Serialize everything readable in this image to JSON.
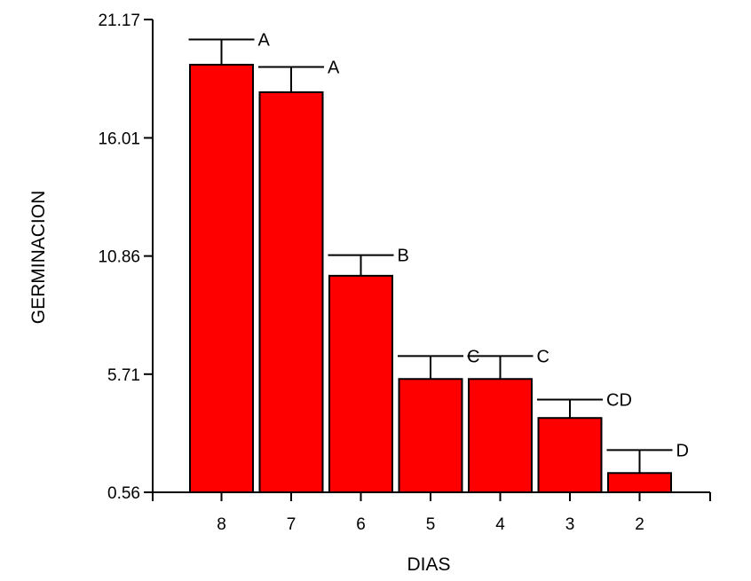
{
  "chart_data": {
    "type": "bar",
    "title": "",
    "xlabel": "DIAS",
    "ylabel": "GERMINACION",
    "categories": [
      "8",
      "7",
      "6",
      "5",
      "4",
      "3",
      "2"
    ],
    "values": [
      19.2,
      18.0,
      10.0,
      5.5,
      5.5,
      3.8,
      1.4
    ],
    "error_upper": [
      20.3,
      19.1,
      10.9,
      6.5,
      6.5,
      4.6,
      2.4
    ],
    "group_labels": [
      "A",
      "A",
      "B",
      "C",
      "C",
      "CD",
      "D"
    ],
    "ylim": [
      0.56,
      21.17
    ],
    "yticks": [
      "0.56",
      "5.71",
      "10.86",
      "16.01",
      "21.17"
    ],
    "ytick_values": [
      0.56,
      5.71,
      10.86,
      16.01,
      21.17
    ],
    "bar_color": "#ff0000",
    "grid": false,
    "legend": "none"
  }
}
